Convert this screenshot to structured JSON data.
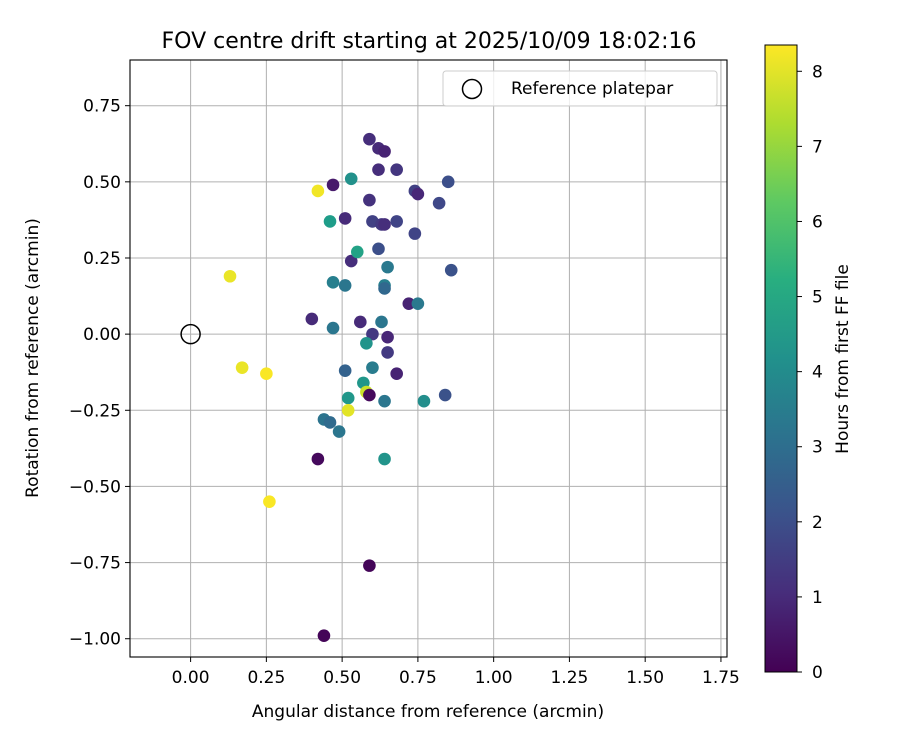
{
  "chart_data": {
    "type": "scatter",
    "title": "FOV centre drift starting at 2025/10/09 18:02:16",
    "xlabel": "Angular distance from reference (arcmin)",
    "ylabel": "Rotation from reference (arcmin)",
    "xlim": [
      -0.2,
      1.77
    ],
    "ylim": [
      -1.06,
      0.9
    ],
    "x_ticks": [
      0.0,
      0.25,
      0.5,
      0.75,
      1.0,
      1.25,
      1.5,
      1.75
    ],
    "x_tick_labels": [
      "0.00",
      "0.25",
      "0.50",
      "0.75",
      "1.00",
      "1.25",
      "1.50",
      "1.75"
    ],
    "y_ticks": [
      -1.0,
      -0.75,
      -0.5,
      -0.25,
      0.0,
      0.25,
      0.5,
      0.75
    ],
    "y_tick_labels": [
      "−1.00",
      "−0.75",
      "−0.50",
      "−0.25",
      "0.00",
      "0.25",
      "0.50",
      "0.75"
    ],
    "grid": true,
    "legend": {
      "position": "top-right",
      "entries": [
        "Reference platepar"
      ]
    },
    "reference_point": {
      "x": 0.0,
      "y": 0.0,
      "label": "Reference platepar"
    },
    "colorbar": {
      "label": "Hours from first FF file",
      "range": [
        0,
        8.35
      ],
      "ticks": [
        0,
        1,
        2,
        3,
        4,
        5,
        6,
        7,
        8
      ],
      "tick_labels": [
        "0",
        "1",
        "2",
        "3",
        "4",
        "5",
        "6",
        "7",
        "8"
      ],
      "colormap": "viridis"
    },
    "points": [
      {
        "x": 0.44,
        "y": -0.99,
        "c": 0.1
      },
      {
        "x": 0.59,
        "y": -0.76,
        "c": 0.1
      },
      {
        "x": 0.42,
        "y": -0.41,
        "c": 0.2
      },
      {
        "x": 0.47,
        "y": 0.49,
        "c": 0.6
      },
      {
        "x": 0.4,
        "y": 0.05,
        "c": 1.0
      },
      {
        "x": 0.59,
        "y": 0.64,
        "c": 1.1
      },
      {
        "x": 0.62,
        "y": 0.61,
        "c": 1.0
      },
      {
        "x": 0.64,
        "y": 0.6,
        "c": 0.8
      },
      {
        "x": 0.62,
        "y": 0.54,
        "c": 1.1
      },
      {
        "x": 0.68,
        "y": 0.54,
        "c": 1.3
      },
      {
        "x": 0.59,
        "y": 0.44,
        "c": 1.2
      },
      {
        "x": 0.74,
        "y": 0.47,
        "c": 1.6
      },
      {
        "x": 0.75,
        "y": 0.46,
        "c": 0.9
      },
      {
        "x": 0.85,
        "y": 0.5,
        "c": 2.0
      },
      {
        "x": 0.82,
        "y": 0.43,
        "c": 1.8
      },
      {
        "x": 0.51,
        "y": 0.38,
        "c": 1.0
      },
      {
        "x": 0.6,
        "y": 0.37,
        "c": 1.6
      },
      {
        "x": 0.63,
        "y": 0.36,
        "c": 1.4
      },
      {
        "x": 0.64,
        "y": 0.36,
        "c": 1.1
      },
      {
        "x": 0.68,
        "y": 0.37,
        "c": 1.7
      },
      {
        "x": 0.74,
        "y": 0.33,
        "c": 1.7
      },
      {
        "x": 0.62,
        "y": 0.28,
        "c": 2.0
      },
      {
        "x": 0.53,
        "y": 0.24,
        "c": 1.1
      },
      {
        "x": 0.65,
        "y": 0.22,
        "c": 3.4
      },
      {
        "x": 0.86,
        "y": 0.21,
        "c": 2.1
      },
      {
        "x": 0.47,
        "y": 0.17,
        "c": 3.6
      },
      {
        "x": 0.51,
        "y": 0.16,
        "c": 3.3
      },
      {
        "x": 0.64,
        "y": 0.16,
        "c": 3.6
      },
      {
        "x": 0.64,
        "y": 0.15,
        "c": 2.8
      },
      {
        "x": 0.72,
        "y": 0.1,
        "c": 0.8
      },
      {
        "x": 0.75,
        "y": 0.1,
        "c": 3.4
      },
      {
        "x": 0.56,
        "y": 0.04,
        "c": 1.0
      },
      {
        "x": 0.63,
        "y": 0.04,
        "c": 3.3
      },
      {
        "x": 0.47,
        "y": 0.02,
        "c": 3.3
      },
      {
        "x": 0.6,
        "y": 0.0,
        "c": 1.4
      },
      {
        "x": 0.65,
        "y": -0.01,
        "c": 0.9
      },
      {
        "x": 0.58,
        "y": -0.03,
        "c": 4.3
      },
      {
        "x": 0.65,
        "y": -0.06,
        "c": 1.4
      },
      {
        "x": 0.51,
        "y": -0.12,
        "c": 2.6
      },
      {
        "x": 0.6,
        "y": -0.11,
        "c": 3.5
      },
      {
        "x": 0.68,
        "y": -0.13,
        "c": 0.8
      },
      {
        "x": 0.57,
        "y": -0.16,
        "c": 4.4
      },
      {
        "x": 0.58,
        "y": -0.19,
        "c": 7.7
      },
      {
        "x": 0.59,
        "y": -0.2,
        "c": 0.2
      },
      {
        "x": 0.52,
        "y": -0.21,
        "c": 4.4
      },
      {
        "x": 0.64,
        "y": -0.22,
        "c": 3.3
      },
      {
        "x": 0.77,
        "y": -0.22,
        "c": 4.1
      },
      {
        "x": 0.84,
        "y": -0.2,
        "c": 2.1
      },
      {
        "x": 0.44,
        "y": -0.28,
        "c": 3.2
      },
      {
        "x": 0.46,
        "y": -0.29,
        "c": 2.9
      },
      {
        "x": 0.49,
        "y": -0.32,
        "c": 3.3
      },
      {
        "x": 0.64,
        "y": -0.41,
        "c": 4.3
      },
      {
        "x": 0.55,
        "y": 0.27,
        "c": 4.8
      },
      {
        "x": 0.46,
        "y": 0.37,
        "c": 4.6
      },
      {
        "x": 0.53,
        "y": 0.51,
        "c": 4.2
      },
      {
        "x": 0.42,
        "y": 0.47,
        "c": 8.2
      },
      {
        "x": 0.13,
        "y": 0.19,
        "c": 8.1
      },
      {
        "x": 0.17,
        "y": -0.11,
        "c": 8.1
      },
      {
        "x": 0.25,
        "y": -0.13,
        "c": 8.3
      },
      {
        "x": 0.52,
        "y": -0.25,
        "c": 8.0
      },
      {
        "x": 0.26,
        "y": -0.55,
        "c": 8.3
      }
    ]
  }
}
